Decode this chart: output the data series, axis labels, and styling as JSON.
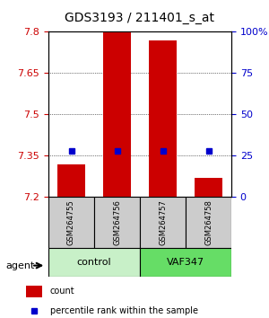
{
  "title": "GDS3193 / 211401_s_at",
  "samples": [
    "GSM264755",
    "GSM264756",
    "GSM264757",
    "GSM264758"
  ],
  "groups": [
    "control",
    "control",
    "VAF347",
    "VAF347"
  ],
  "group_labels": [
    "control",
    "VAF347"
  ],
  "group_colors": [
    "#90EE90",
    "#00CC00"
  ],
  "bar_values": [
    7.32,
    7.8,
    7.77,
    7.27
  ],
  "bar_base": 7.2,
  "percentile_values": [
    28,
    28,
    28,
    28
  ],
  "ylim_left": [
    7.2,
    7.8
  ],
  "yticks_left": [
    7.2,
    7.35,
    7.5,
    7.65,
    7.8
  ],
  "ylim_right": [
    0,
    100
  ],
  "yticks_right": [
    0,
    25,
    50,
    75,
    100
  ],
  "bar_color": "#CC0000",
  "percentile_color": "#0000CC",
  "bar_width": 0.6,
  "agent_label": "agent",
  "legend_count_label": "count",
  "legend_percentile_label": "percentile rank within the sample",
  "grid_color": "#000000",
  "background_color": "#ffffff",
  "plot_bg_color": "#ffffff",
  "group_box_color_1": "#c8f0c8",
  "group_box_color_2": "#66dd66"
}
